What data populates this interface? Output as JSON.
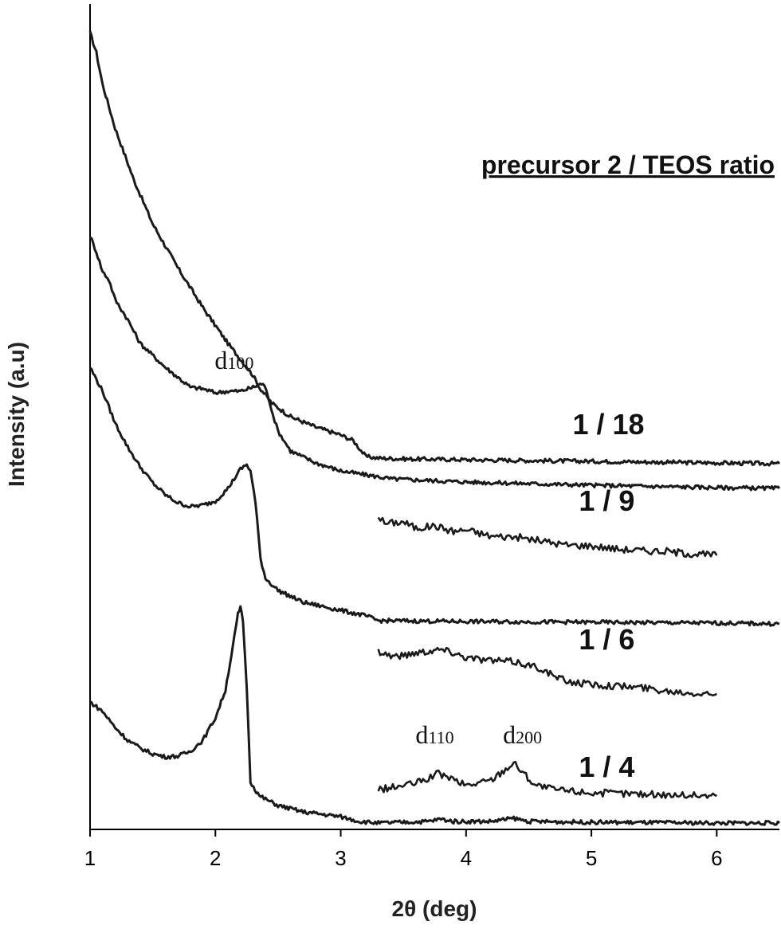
{
  "chart_data": {
    "type": "line",
    "xlabel": "2θ (deg)",
    "ylabel": "Intensity (a.u)",
    "xlim": [
      1,
      6.5
    ],
    "x_ticks": [
      "1",
      "2",
      "3",
      "4",
      "5",
      "6"
    ],
    "y_ticks": false,
    "legend_title": "precursor 2 / TEOS ratio",
    "series": [
      {
        "name": "1 / 18",
        "points": [
          [
            1.0,
            1000
          ],
          [
            1.05,
            975
          ],
          [
            1.1,
            935
          ],
          [
            1.2,
            880
          ],
          [
            1.35,
            815
          ],
          [
            1.5,
            760
          ],
          [
            1.7,
            705
          ],
          [
            1.9,
            655
          ],
          [
            2.1,
            610
          ],
          [
            2.2,
            590
          ],
          [
            2.3,
            570
          ],
          [
            2.35,
            555
          ],
          [
            2.45,
            535
          ],
          [
            2.6,
            518
          ],
          [
            2.8,
            505
          ],
          [
            3.0,
            495
          ],
          [
            3.1,
            488
          ],
          [
            3.2,
            468
          ],
          [
            3.3,
            466
          ],
          [
            3.5,
            465
          ],
          [
            4.0,
            464
          ],
          [
            4.5,
            463
          ],
          [
            5.0,
            462
          ],
          [
            5.5,
            461
          ],
          [
            6.0,
            460
          ],
          [
            6.5,
            459
          ]
        ]
      },
      {
        "name": "1 / 9",
        "points": [
          [
            1.0,
            745
          ],
          [
            1.05,
            725
          ],
          [
            1.1,
            700
          ],
          [
            1.15,
            690
          ],
          [
            1.2,
            665
          ],
          [
            1.3,
            640
          ],
          [
            1.4,
            610
          ],
          [
            1.6,
            580
          ],
          [
            1.8,
            555
          ],
          [
            1.9,
            553
          ],
          [
            2.0,
            548
          ],
          [
            2.1,
            550
          ],
          [
            2.2,
            550
          ],
          [
            2.3,
            555
          ],
          [
            2.38,
            560
          ],
          [
            2.42,
            545
          ],
          [
            2.46,
            520
          ],
          [
            2.5,
            500
          ],
          [
            2.6,
            475
          ],
          [
            2.8,
            460
          ],
          [
            3.0,
            450
          ],
          [
            3.2,
            445
          ],
          [
            3.4,
            440
          ],
          [
            4.0,
            436
          ],
          [
            5.0,
            432
          ],
          [
            6.0,
            429
          ],
          [
            6.5,
            428
          ]
        ]
      },
      {
        "name": "1 / 6",
        "points": [
          [
            1.0,
            580
          ],
          [
            1.1,
            550
          ],
          [
            1.2,
            510
          ],
          [
            1.3,
            480
          ],
          [
            1.4,
            455
          ],
          [
            1.5,
            435
          ],
          [
            1.6,
            420
          ],
          [
            1.7,
            410
          ],
          [
            1.8,
            405
          ],
          [
            1.9,
            407
          ],
          [
            2.0,
            412
          ],
          [
            2.1,
            428
          ],
          [
            2.2,
            452
          ],
          [
            2.25,
            458
          ],
          [
            2.28,
            450
          ],
          [
            2.32,
            410
          ],
          [
            2.36,
            340
          ],
          [
            2.4,
            315
          ],
          [
            2.5,
            300
          ],
          [
            2.7,
            285
          ],
          [
            3.0,
            275
          ],
          [
            3.2,
            268
          ],
          [
            3.3,
            262
          ],
          [
            4.0,
            261
          ],
          [
            5.0,
            260
          ],
          [
            6.0,
            259
          ],
          [
            6.5,
            258
          ]
        ]
      },
      {
        "name": "1 / 4",
        "points": [
          [
            1.0,
            160
          ],
          [
            1.1,
            148
          ],
          [
            1.2,
            128
          ],
          [
            1.3,
            112
          ],
          [
            1.4,
            102
          ],
          [
            1.5,
            95
          ],
          [
            1.6,
            91
          ],
          [
            1.7,
            92
          ],
          [
            1.8,
            98
          ],
          [
            1.9,
            112
          ],
          [
            2.0,
            140
          ],
          [
            2.08,
            175
          ],
          [
            2.14,
            230
          ],
          [
            2.18,
            270
          ],
          [
            2.2,
            278
          ],
          [
            2.22,
            262
          ],
          [
            2.25,
            180
          ],
          [
            2.28,
            60
          ],
          [
            2.35,
            42
          ],
          [
            2.5,
            30
          ],
          [
            2.7,
            22
          ],
          [
            3.0,
            16
          ],
          [
            3.15,
            10
          ],
          [
            3.3,
            8
          ],
          [
            3.7,
            10
          ],
          [
            3.8,
            13
          ],
          [
            3.9,
            10
          ],
          [
            4.2,
            10
          ],
          [
            4.38,
            14
          ],
          [
            4.5,
            10
          ],
          [
            5.0,
            9
          ],
          [
            6.0,
            8
          ],
          [
            6.5,
            8
          ]
        ]
      }
    ],
    "insets": [
      {
        "series": "1 / 9",
        "points": [
          [
            3.3,
            394
          ],
          [
            3.35,
            384
          ],
          [
            3.5,
            386
          ],
          [
            3.6,
            378
          ],
          [
            3.75,
            381
          ],
          [
            3.9,
            374
          ],
          [
            4.0,
            376
          ],
          [
            4.2,
            368
          ],
          [
            4.4,
            367
          ],
          [
            4.6,
            362
          ],
          [
            4.8,
            357
          ],
          [
            5.0,
            356
          ],
          [
            5.2,
            352
          ],
          [
            5.4,
            350
          ],
          [
            5.6,
            349
          ],
          [
            5.8,
            346
          ],
          [
            6.0,
            344
          ]
        ]
      },
      {
        "series": "1 / 6",
        "points": [
          [
            3.3,
            224
          ],
          [
            3.4,
            218
          ],
          [
            3.5,
            218
          ],
          [
            3.6,
            222
          ],
          [
            3.7,
            224
          ],
          [
            3.8,
            226
          ],
          [
            3.9,
            222
          ],
          [
            4.0,
            216
          ],
          [
            4.2,
            212
          ],
          [
            4.4,
            210
          ],
          [
            4.5,
            206
          ],
          [
            4.6,
            202
          ],
          [
            4.7,
            192
          ],
          [
            4.8,
            186
          ],
          [
            5.0,
            182
          ],
          [
            5.2,
            180
          ],
          [
            5.4,
            178
          ],
          [
            5.6,
            174
          ],
          [
            5.8,
            172
          ],
          [
            6.0,
            170
          ]
        ]
      },
      {
        "series": "1 / 4",
        "points": [
          [
            3.3,
            50
          ],
          [
            3.4,
            52
          ],
          [
            3.6,
            58
          ],
          [
            3.7,
            64
          ],
          [
            3.78,
            70
          ],
          [
            3.85,
            66
          ],
          [
            4.0,
            55
          ],
          [
            4.2,
            62
          ],
          [
            4.3,
            74
          ],
          [
            4.38,
            84
          ],
          [
            4.45,
            72
          ],
          [
            4.55,
            56
          ],
          [
            4.7,
            50
          ],
          [
            5.0,
            46
          ],
          [
            5.5,
            44
          ],
          [
            6.0,
            42
          ]
        ]
      }
    ],
    "series_labels": [
      {
        "text": "1 / 18",
        "x": 4.85,
        "y": 496
      },
      {
        "text": "1 / 9",
        "x": 4.9,
        "y": 400
      },
      {
        "text": "1 / 6",
        "x": 4.9,
        "y": 226
      },
      {
        "text": "1 / 4",
        "x": 4.9,
        "y": 66
      }
    ],
    "peak_labels": [
      {
        "main": "d",
        "sub": "100",
        "x": 2.15,
        "y": 578
      },
      {
        "main": "d",
        "sub": "110",
        "x": 3.75,
        "y": 108
      },
      {
        "main": "d",
        "sub": "200",
        "x": 4.45,
        "y": 108
      }
    ]
  }
}
